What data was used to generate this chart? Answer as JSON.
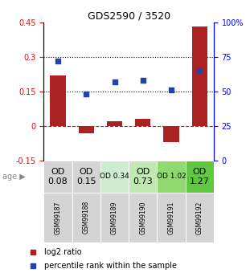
{
  "title": "GDS2590 / 3520",
  "samples": [
    "GSM99187",
    "GSM99188",
    "GSM99189",
    "GSM99190",
    "GSM99191",
    "GSM99192"
  ],
  "log2_ratio": [
    0.22,
    -0.03,
    0.02,
    0.03,
    -0.07,
    0.43
  ],
  "percentile_rank": [
    72,
    48,
    57,
    58,
    51,
    65
  ],
  "bar_color": "#aa2222",
  "dot_color": "#2244aa",
  "ylim_left": [
    -0.15,
    0.45
  ],
  "ylim_right": [
    0,
    100
  ],
  "yticks_left": [
    -0.15,
    0,
    0.15,
    0.3,
    0.45
  ],
  "yticks_right": [
    0,
    25,
    50,
    75,
    100
  ],
  "age_labels": [
    "OD\n0.08",
    "OD\n0.15",
    "OD 0.34",
    "OD\n0.73",
    "OD 1.02",
    "OD\n1.27"
  ],
  "age_font_sizes": [
    8,
    8,
    6.5,
    8,
    6.5,
    8
  ],
  "age_bg_colors": [
    "#d4d4d4",
    "#d4d4d4",
    "#d0ecd0",
    "#c0e8b0",
    "#90d870",
    "#60c840"
  ],
  "sample_bg_color": "#d4d4d4",
  "legend_labels": [
    "log2 ratio",
    "percentile rank within the sample"
  ]
}
